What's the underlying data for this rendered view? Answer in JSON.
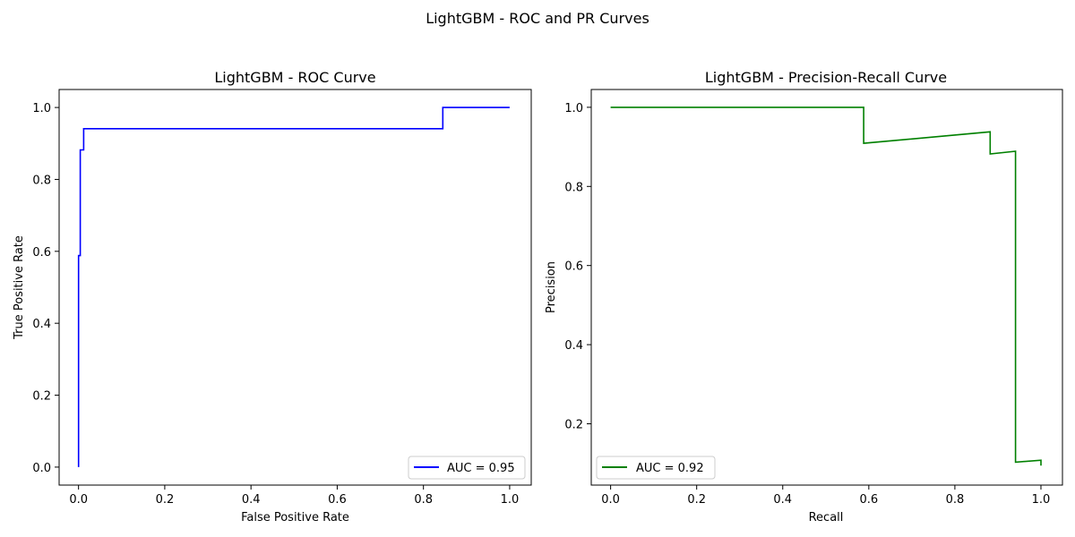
{
  "figure": {
    "suptitle": "LightGBM - ROC and PR Curves"
  },
  "chart_data": [
    {
      "type": "line",
      "title": "LightGBM - ROC Curve",
      "xlabel": "False Positive Rate",
      "ylabel": "True Positive Rate",
      "xlim": [
        -0.045,
        1.05
      ],
      "ylim": [
        -0.05,
        1.05
      ],
      "xticks": [
        "0.0",
        "0.2",
        "0.4",
        "0.6",
        "0.8",
        "1.0"
      ],
      "yticks": [
        "0.0",
        "0.2",
        "0.4",
        "0.6",
        "0.8",
        "1.0"
      ],
      "grid": false,
      "legend_position": "lower right",
      "series": [
        {
          "name": "AUC = 0.95",
          "color": "#0000ff",
          "x": [
            0.0,
            0.0,
            0.004,
            0.004,
            0.008,
            0.008,
            0.012,
            0.012,
            0.845,
            0.845,
            1.0
          ],
          "y": [
            0.0,
            0.588,
            0.588,
            0.882,
            0.882,
            0.882,
            0.882,
            0.941,
            0.941,
            1.0,
            1.0
          ]
        }
      ]
    },
    {
      "type": "line",
      "title": "LightGBM - Precision-Recall Curve",
      "xlabel": "Recall",
      "ylabel": "Precision",
      "xlim": [
        -0.045,
        1.05
      ],
      "ylim": [
        0.045,
        1.045
      ],
      "xticks": [
        "0.0",
        "0.2",
        "0.4",
        "0.6",
        "0.8",
        "1.0"
      ],
      "yticks": [
        "0.2",
        "0.4",
        "0.6",
        "0.8",
        "1.0"
      ],
      "grid": false,
      "legend_position": "lower left",
      "series": [
        {
          "name": "AUC = 0.92",
          "color": "#008000",
          "x": [
            0.0,
            0.588,
            0.588,
            0.882,
            0.882,
            0.941,
            0.941,
            1.0,
            1.0
          ],
          "y": [
            1.0,
            1.0,
            0.909,
            0.938,
            0.882,
            0.889,
            0.103,
            0.108,
            0.094
          ]
        }
      ]
    }
  ]
}
